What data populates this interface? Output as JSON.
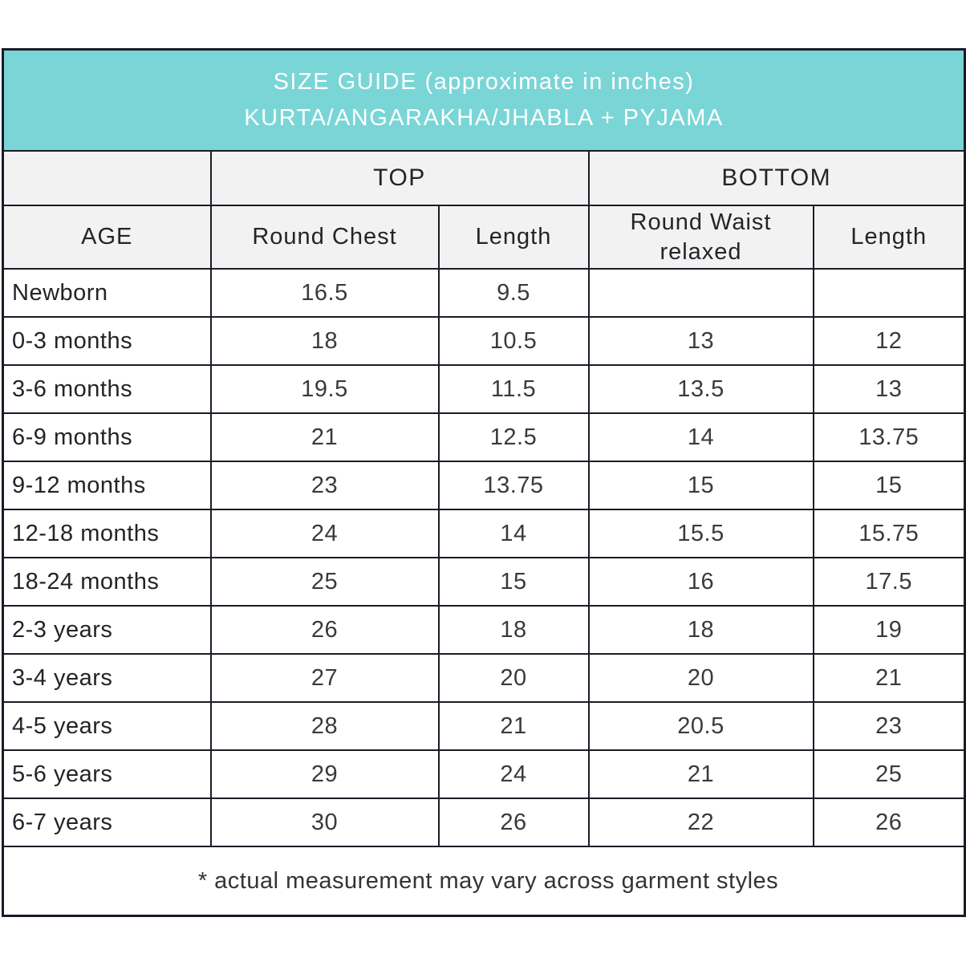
{
  "header": {
    "line1": "SIZE GUIDE (approximate in inches)",
    "line2": "KURTA/ANGARAKHA/JHABLA + PYJAMA"
  },
  "table": {
    "group_top": "TOP",
    "group_bottom": "BOTTOM",
    "columns": [
      "AGE",
      "Round Chest",
      "Length",
      "Round Waist relaxed",
      "Length"
    ]
  },
  "footer": {
    "note": "* actual measurement may vary across garment styles"
  },
  "colors": {
    "accent_teal": "#7ad5d6",
    "header_gray": "#f2f2f2",
    "border": "#1b1b26",
    "title_text": "#ffffff",
    "body_text": "#242428"
  },
  "chart_data": {
    "type": "table",
    "title": "SIZE GUIDE (approximate in inches) KURTA/ANGARAKHA/JHABLA + PYJAMA",
    "column_groups": [
      {
        "label": "TOP",
        "columns": [
          "Round Chest",
          "Length"
        ]
      },
      {
        "label": "BOTTOM",
        "columns": [
          "Round Waist relaxed",
          "Length"
        ]
      }
    ],
    "columns": [
      "AGE",
      "Round Chest",
      "Length",
      "Round Waist relaxed",
      "Length"
    ],
    "rows": [
      [
        "Newborn",
        "16.5",
        "9.5",
        "",
        ""
      ],
      [
        "0-3 months",
        "18",
        "10.5",
        "13",
        "12"
      ],
      [
        "3-6 months",
        "19.5",
        "11.5",
        "13.5",
        "13"
      ],
      [
        "6-9 months",
        "21",
        "12.5",
        "14",
        "13.75"
      ],
      [
        "9-12 months",
        "23",
        "13.75",
        "15",
        "15"
      ],
      [
        "12-18 months",
        "24",
        "14",
        "15.5",
        "15.75"
      ],
      [
        "18-24 months",
        "25",
        "15",
        "16",
        "17.5"
      ],
      [
        "2-3 years",
        "26",
        "18",
        "18",
        "19"
      ],
      [
        "3-4 years",
        "27",
        "20",
        "20",
        "21"
      ],
      [
        "4-5 years",
        "28",
        "21",
        "20.5",
        "23"
      ],
      [
        "5-6 years",
        "29",
        "24",
        "21",
        "25"
      ],
      [
        "6-7 years",
        "30",
        "26",
        "22",
        "26"
      ]
    ],
    "footnote": "* actual measurement may vary across garment styles",
    "layout": {
      "grid": true,
      "header_background": "#f2f2f2",
      "title_background": "#7ad5d6"
    }
  }
}
